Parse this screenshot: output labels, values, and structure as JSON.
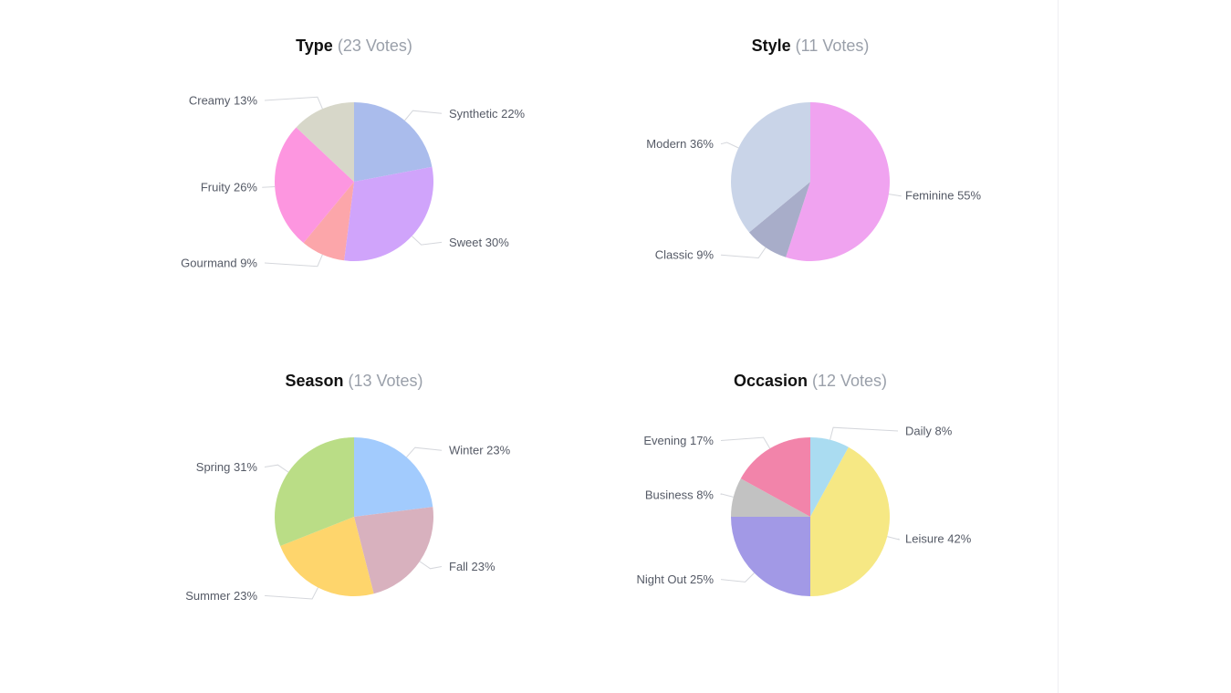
{
  "chart_data": [
    {
      "type": "pie",
      "title": "Type",
      "votes": "(23 Votes)",
      "slices": [
        {
          "label": "Synthetic 22%",
          "value": 22,
          "color": "#aabcec"
        },
        {
          "label": "Sweet 30%",
          "value": 30,
          "color": "#d0a4fb"
        },
        {
          "label": "Gourmand 9%",
          "value": 9,
          "color": "#fca6aa"
        },
        {
          "label": "Fruity 26%",
          "value": 26,
          "color": "#fd96e0"
        },
        {
          "label": "Creamy 13%",
          "value": 13,
          "color": "#d7d7c9"
        }
      ]
    },
    {
      "type": "pie",
      "title": "Style",
      "votes": "(11 Votes)",
      "slices": [
        {
          "label": "Feminine 55%",
          "value": 55,
          "color": "#f0a3f0"
        },
        {
          "label": "Classic 9%",
          "value": 9,
          "color": "#a8adc9"
        },
        {
          "label": "Modern 36%",
          "value": 36,
          "color": "#c9d4e8"
        }
      ]
    },
    {
      "type": "pie",
      "title": "Season",
      "votes": "(13 Votes)",
      "slices": [
        {
          "label": "Winter 23%",
          "value": 23,
          "color": "#a2cbfd"
        },
        {
          "label": "Fall 23%",
          "value": 23,
          "color": "#d8b1be"
        },
        {
          "label": "Summer 23%",
          "value": 23,
          "color": "#fed56c"
        },
        {
          "label": "Spring 31%",
          "value": 31,
          "color": "#badd86"
        }
      ]
    },
    {
      "type": "pie",
      "title": "Occasion",
      "votes": "(12 Votes)",
      "slices": [
        {
          "label": "Daily 8%",
          "value": 8,
          "color": "#aadcf1"
        },
        {
          "label": "Leisure 42%",
          "value": 42,
          "color": "#f6e884"
        },
        {
          "label": "Night Out 25%",
          "value": 25,
          "color": "#a299e6"
        },
        {
          "label": "Business 8%",
          "value": 8,
          "color": "#c2c2c2"
        },
        {
          "label": "Evening 17%",
          "value": 17,
          "color": "#f284aa"
        }
      ]
    }
  ]
}
